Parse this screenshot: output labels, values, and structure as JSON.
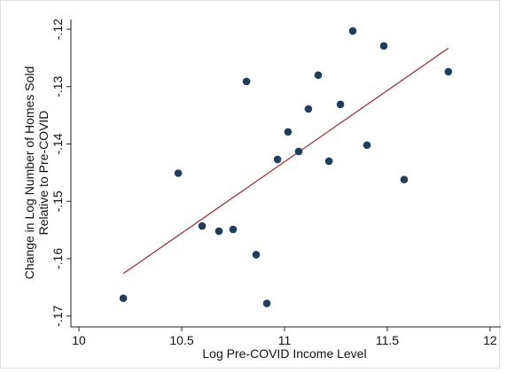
{
  "chart_data": {
    "type": "scatter",
    "xlabel": "Log Pre-COVID Income Level",
    "ylabel": [
      "Change in Log Number of Homes Sold",
      "Relative to Pre-COVID"
    ],
    "x": [
      10.216,
      10.483,
      10.599,
      10.681,
      10.75,
      10.815,
      10.862,
      10.914,
      10.966,
      11.017,
      11.069,
      11.116,
      11.164,
      11.216,
      11.272,
      11.332,
      11.401,
      11.483,
      11.582,
      11.797
    ],
    "series": [
      {
        "color": "#1f3d5c",
        "values": [
          -0.1669,
          -0.1451,
          -0.1543,
          -0.1552,
          -0.1549,
          -0.1291,
          -0.1593,
          -0.1678,
          -0.1427,
          -0.1379,
          -0.1413,
          -0.1339,
          -0.128,
          -0.143,
          -0.1331,
          -0.1203,
          -0.1402,
          -0.1229,
          -0.1462,
          -0.1274
        ]
      }
    ],
    "fit_line": {
      "color": "#a0262b",
      "x": [
        10.216,
        11.797
      ],
      "y": [
        -0.1626,
        -0.1233
      ]
    },
    "xlim": [
      9.961,
      12.052
    ],
    "xticks": [
      10,
      10.5,
      11,
      11.5,
      12
    ],
    "ylim": [
      -0.1719,
      -0.1183
    ],
    "yticks": [
      {
        "value": -0.17,
        "label": "-.17"
      },
      {
        "value": -0.16,
        "label": "-.16"
      },
      {
        "value": -0.15,
        "label": "-.15"
      },
      {
        "value": -0.14,
        "label": "-.14"
      },
      {
        "value": -0.13,
        "label": "-.13"
      },
      {
        "value": -0.12,
        "label": "-.12"
      }
    ]
  }
}
